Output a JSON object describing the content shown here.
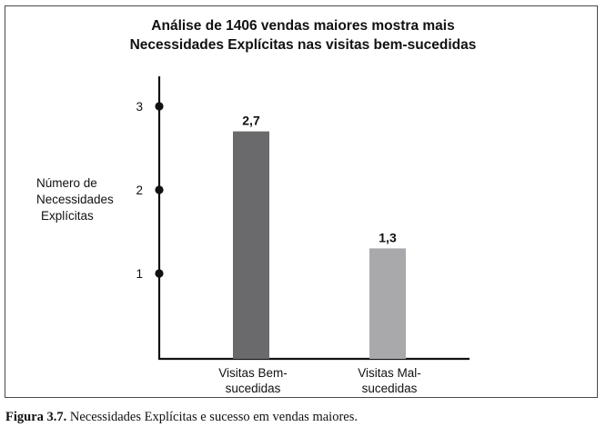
{
  "chart_data": {
    "type": "bar",
    "title": [
      "Análise de 1406 vendas maiores mostra mais",
      "Necessidades Explícitas nas visitas bem-sucedidas"
    ],
    "ylabel": [
      "Número de",
      "Necessidades",
      "Explícitas"
    ],
    "xlabel": "",
    "categories": [
      [
        "Visitas Bem-",
        "sucedidas"
      ],
      [
        "Visitas Mal-",
        "sucedidas"
      ]
    ],
    "values": [
      2.7,
      1.3
    ],
    "value_labels": [
      "2,7",
      "1,3"
    ],
    "yticks": [
      1,
      2,
      3
    ],
    "ylim": [
      0,
      3
    ],
    "colors": [
      "#6a6a6d",
      "#a9a9ac"
    ],
    "grid": false,
    "legend": "none"
  },
  "caption": {
    "label": "Figura 3.7.",
    "text": "Necessidades Explícitas e sucesso em vendas maiores."
  }
}
